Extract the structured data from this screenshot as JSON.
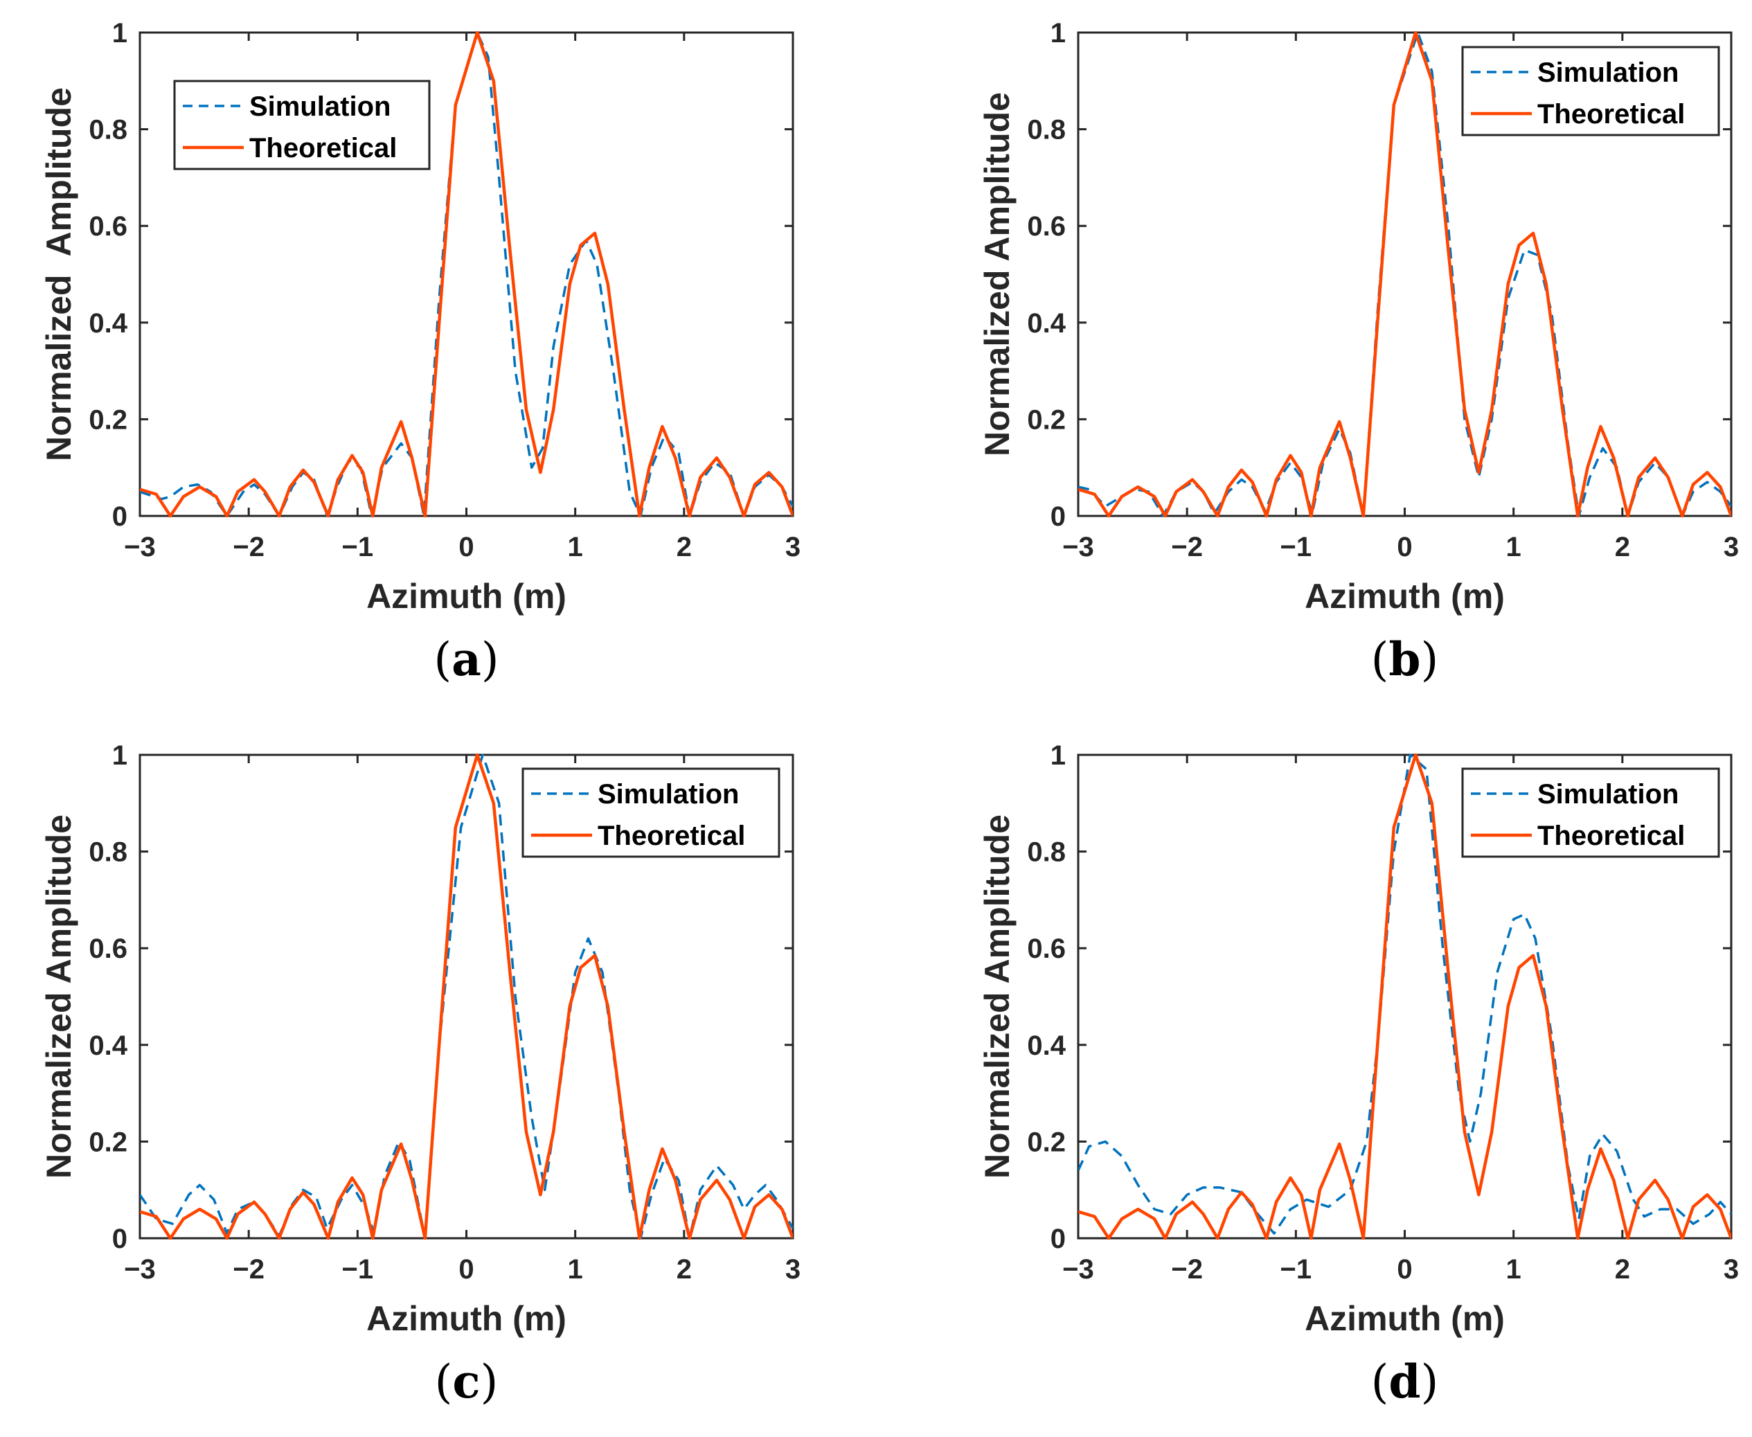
{
  "figure": {
    "colors": {
      "simulation": "#0072BD",
      "theoretical": "#FF4500",
      "axis": "#262626"
    }
  },
  "chart_data": [
    {
      "type": "line",
      "panel_label": "a",
      "xlabel": "Azimuth (m)",
      "ylabel": "Normalized  Amplitude",
      "xlim": [
        -3,
        3
      ],
      "ylim": [
        0,
        1
      ],
      "xticks": [
        "−3",
        "−2",
        "−1",
        "0",
        "1",
        "2",
        "3"
      ],
      "yticks": [
        "0",
        "0.2",
        "0.4",
        "0.6",
        "0.8",
        "1"
      ],
      "legend": {
        "position": "top-left",
        "entries": [
          "Simulation",
          "Theoretical"
        ]
      },
      "series": [
        {
          "name": "Simulation",
          "style": "dashed",
          "x": [
            -3,
            -2.8,
            -2.72,
            -2.6,
            -2.47,
            -2.35,
            -2.2,
            -2.05,
            -1.95,
            -1.85,
            -1.72,
            -1.6,
            -1.5,
            -1.4,
            -1.28,
            -1.18,
            -1.08,
            -0.97,
            -0.87,
            -0.77,
            -0.6,
            -0.5,
            -0.39,
            -0.25,
            -0.1,
            0.1,
            0.2,
            0.3,
            0.45,
            0.6,
            0.7,
            0.8,
            0.95,
            1.1,
            1.2,
            1.35,
            1.5,
            1.6,
            1.7,
            1.82,
            1.95,
            2.05,
            2.15,
            2.28,
            2.42,
            2.55,
            2.65,
            2.78,
            2.9,
            3
          ],
          "y": [
            0.05,
            0.035,
            0.04,
            0.06,
            0.065,
            0.05,
            0,
            0.05,
            0.065,
            0.045,
            0,
            0.06,
            0.09,
            0.075,
            0,
            0.065,
            0.115,
            0.1,
            0,
            0.1,
            0.15,
            0.12,
            0,
            0.45,
            0.85,
            1,
            0.95,
            0.7,
            0.3,
            0.1,
            0.14,
            0.35,
            0.52,
            0.57,
            0.52,
            0.3,
            0.05,
            0,
            0.1,
            0.165,
            0.13,
            0,
            0.07,
            0.11,
            0.09,
            0,
            0.06,
            0.085,
            0.06,
            0.02
          ]
        },
        {
          "name": "Theoretical",
          "style": "solid",
          "x": [
            -3,
            -2.85,
            -2.72,
            -2.6,
            -2.45,
            -2.3,
            -2.2,
            -2.1,
            -1.95,
            -1.85,
            -1.72,
            -1.62,
            -1.5,
            -1.4,
            -1.27,
            -1.18,
            -1.05,
            -0.95,
            -0.86,
            -0.78,
            -0.6,
            -0.5,
            -0.38,
            -0.25,
            -0.1,
            0.1,
            0.25,
            0.4,
            0.55,
            0.68,
            0.8,
            0.95,
            1.05,
            1.18,
            1.3,
            1.45,
            1.59,
            1.68,
            1.8,
            1.92,
            2.05,
            2.15,
            2.3,
            2.42,
            2.55,
            2.65,
            2.78,
            2.9,
            3
          ],
          "y": [
            0.055,
            0.045,
            0,
            0.04,
            0.06,
            0.04,
            0,
            0.05,
            0.075,
            0.05,
            0,
            0.06,
            0.095,
            0.07,
            0,
            0.075,
            0.125,
            0.09,
            0,
            0.1,
            0.195,
            0.12,
            0,
            0.4,
            0.85,
            1,
            0.9,
            0.55,
            0.22,
            0.09,
            0.22,
            0.48,
            0.56,
            0.585,
            0.48,
            0.22,
            0,
            0.1,
            0.185,
            0.12,
            0,
            0.08,
            0.12,
            0.08,
            0,
            0.065,
            0.09,
            0.06,
            0
          ]
        }
      ]
    },
    {
      "type": "line",
      "panel_label": "b",
      "xlabel": "Azimuth (m)",
      "ylabel": "Normalized Amplitude",
      "xlim": [
        -3,
        3
      ],
      "ylim": [
        0,
        1
      ],
      "xticks": [
        "−3",
        "−2",
        "−1",
        "0",
        "1",
        "2",
        "3"
      ],
      "yticks": [
        "0",
        "0.2",
        "0.4",
        "0.6",
        "0.8",
        "1"
      ],
      "legend": {
        "position": "top-right",
        "entries": [
          "Simulation",
          "Theoretical"
        ]
      },
      "series": [
        {
          "name": "Simulation",
          "style": "dashed",
          "x": [
            -3,
            -2.9,
            -2.75,
            -2.6,
            -2.48,
            -2.35,
            -2.22,
            -2.1,
            -1.95,
            -1.85,
            -1.75,
            -1.62,
            -1.5,
            -1.4,
            -1.28,
            -1.18,
            -1.05,
            -0.95,
            -0.85,
            -0.75,
            -0.6,
            -0.5,
            -0.38,
            -0.25,
            -0.1,
            0.12,
            0.25,
            0.4,
            0.55,
            0.68,
            0.8,
            0.95,
            1.1,
            1.22,
            1.35,
            1.5,
            1.6,
            1.7,
            1.82,
            1.95,
            2.05,
            2.15,
            2.3,
            2.42,
            2.55,
            2.65,
            2.78,
            2.9,
            3
          ],
          "y": [
            0.06,
            0.055,
            0.02,
            0.04,
            0.055,
            0.05,
            0,
            0.05,
            0.07,
            0.05,
            0.005,
            0.05,
            0.075,
            0.06,
            0.01,
            0.07,
            0.11,
            0.08,
            0.005,
            0.11,
            0.18,
            0.13,
            0,
            0.42,
            0.85,
            1,
            0.92,
            0.6,
            0.2,
            0.08,
            0.2,
            0.45,
            0.55,
            0.54,
            0.42,
            0.15,
            0,
            0.08,
            0.14,
            0.1,
            0,
            0.07,
            0.11,
            0.08,
            0,
            0.05,
            0.07,
            0.05,
            0.02
          ]
        },
        {
          "name": "Theoretical",
          "style": "solid",
          "x": [
            -3,
            -2.85,
            -2.72,
            -2.6,
            -2.45,
            -2.3,
            -2.2,
            -2.1,
            -1.95,
            -1.85,
            -1.72,
            -1.62,
            -1.5,
            -1.4,
            -1.27,
            -1.18,
            -1.05,
            -0.95,
            -0.86,
            -0.78,
            -0.6,
            -0.5,
            -0.38,
            -0.25,
            -0.1,
            0.1,
            0.25,
            0.4,
            0.55,
            0.68,
            0.8,
            0.95,
            1.05,
            1.18,
            1.3,
            1.45,
            1.59,
            1.68,
            1.8,
            1.92,
            2.05,
            2.15,
            2.3,
            2.42,
            2.55,
            2.65,
            2.78,
            2.9,
            3
          ],
          "y": [
            0.055,
            0.045,
            0,
            0.04,
            0.06,
            0.04,
            0,
            0.05,
            0.075,
            0.05,
            0,
            0.06,
            0.095,
            0.07,
            0,
            0.075,
            0.125,
            0.09,
            0,
            0.1,
            0.195,
            0.12,
            0,
            0.4,
            0.85,
            1,
            0.9,
            0.55,
            0.22,
            0.09,
            0.22,
            0.48,
            0.56,
            0.585,
            0.48,
            0.22,
            0,
            0.1,
            0.185,
            0.12,
            0,
            0.08,
            0.12,
            0.08,
            0,
            0.065,
            0.09,
            0.06,
            0
          ]
        }
      ]
    },
    {
      "type": "line",
      "panel_label": "c",
      "xlabel": "Azimuth (m)",
      "ylabel": "Normalized Amplitude",
      "xlim": [
        -3,
        3
      ],
      "ylim": [
        0,
        1
      ],
      "xticks": [
        "−3",
        "−2",
        "−1",
        "0",
        "1",
        "2",
        "3"
      ],
      "yticks": [
        "0",
        "0.2",
        "0.4",
        "0.6",
        "0.8",
        "1"
      ],
      "legend": {
        "position": "top-right",
        "entries": [
          "Simulation",
          "Theoretical"
        ]
      },
      "series": [
        {
          "name": "Simulation",
          "style": "dashed",
          "x": [
            -3,
            -2.85,
            -2.7,
            -2.55,
            -2.45,
            -2.32,
            -2.2,
            -2.1,
            -1.95,
            -1.85,
            -1.72,
            -1.6,
            -1.5,
            -1.38,
            -1.28,
            -1.15,
            -1.05,
            -0.92,
            -0.85,
            -0.75,
            -0.62,
            -0.52,
            -0.38,
            -0.25,
            -0.05,
            0.15,
            0.3,
            0.45,
            0.6,
            0.72,
            0.85,
            1.0,
            1.12,
            1.25,
            1.4,
            1.5,
            1.6,
            1.7,
            1.82,
            1.95,
            2.05,
            2.15,
            2.3,
            2.45,
            2.55,
            2.65,
            2.75,
            2.85,
            3
          ],
          "y": [
            0.09,
            0.04,
            0.03,
            0.09,
            0.11,
            0.08,
            0.01,
            0.06,
            0.075,
            0.05,
            0.005,
            0.07,
            0.1,
            0.085,
            0.02,
            0.08,
            0.11,
            0.06,
            0.01,
            0.13,
            0.2,
            0.16,
            0,
            0.4,
            0.85,
            1,
            0.9,
            0.5,
            0.25,
            0.1,
            0.3,
            0.55,
            0.62,
            0.55,
            0.3,
            0.1,
            0,
            0.09,
            0.165,
            0.12,
            0,
            0.1,
            0.15,
            0.11,
            0.06,
            0.09,
            0.11,
            0.08,
            0.02
          ]
        },
        {
          "name": "Theoretical",
          "style": "solid",
          "x": [
            -3,
            -2.85,
            -2.72,
            -2.6,
            -2.45,
            -2.3,
            -2.2,
            -2.1,
            -1.95,
            -1.85,
            -1.72,
            -1.62,
            -1.5,
            -1.4,
            -1.27,
            -1.18,
            -1.05,
            -0.95,
            -0.86,
            -0.78,
            -0.6,
            -0.5,
            -0.38,
            -0.25,
            -0.1,
            0.1,
            0.25,
            0.4,
            0.55,
            0.68,
            0.8,
            0.95,
            1.05,
            1.18,
            1.3,
            1.45,
            1.59,
            1.68,
            1.8,
            1.92,
            2.05,
            2.15,
            2.3,
            2.42,
            2.55,
            2.65,
            2.78,
            2.9,
            3
          ],
          "y": [
            0.055,
            0.045,
            0,
            0.04,
            0.06,
            0.04,
            0,
            0.05,
            0.075,
            0.05,
            0,
            0.06,
            0.095,
            0.07,
            0,
            0.075,
            0.125,
            0.09,
            0,
            0.1,
            0.195,
            0.12,
            0,
            0.4,
            0.85,
            1,
            0.9,
            0.55,
            0.22,
            0.09,
            0.22,
            0.48,
            0.56,
            0.585,
            0.48,
            0.22,
            0,
            0.1,
            0.185,
            0.12,
            0,
            0.08,
            0.12,
            0.08,
            0,
            0.065,
            0.09,
            0.06,
            0
          ]
        }
      ]
    },
    {
      "type": "line",
      "panel_label": "d",
      "xlabel": "Azimuth (m)",
      "ylabel": "Normalized Amplitude",
      "xlim": [
        -3,
        3
      ],
      "ylim": [
        0,
        1
      ],
      "xticks": [
        "−3",
        "−2",
        "−1",
        "0",
        "1",
        "2",
        "3"
      ],
      "yticks": [
        "0",
        "0.2",
        "0.4",
        "0.6",
        "0.8",
        "1"
      ],
      "legend": {
        "position": "top-right",
        "entries": [
          "Simulation",
          "Theoretical"
        ]
      },
      "series": [
        {
          "name": "Simulation",
          "style": "dashed",
          "x": [
            -3,
            -2.9,
            -2.75,
            -2.6,
            -2.45,
            -2.3,
            -2.15,
            -2.0,
            -1.85,
            -1.7,
            -1.5,
            -1.35,
            -1.2,
            -1.05,
            -0.9,
            -0.7,
            -0.5,
            -0.35,
            -0.25,
            -0.1,
            0.05,
            0.2,
            0.35,
            0.5,
            0.6,
            0.7,
            0.85,
            1.0,
            1.1,
            1.2,
            1.35,
            1.5,
            1.6,
            1.7,
            1.82,
            1.95,
            2.1,
            2.2,
            2.35,
            2.5,
            2.65,
            2.8,
            2.9,
            3
          ],
          "y": [
            0.14,
            0.19,
            0.2,
            0.17,
            0.11,
            0.06,
            0.05,
            0.09,
            0.105,
            0.105,
            0.095,
            0.05,
            0.01,
            0.06,
            0.08,
            0.065,
            0.1,
            0.2,
            0.4,
            0.8,
            1,
            0.97,
            0.6,
            0.3,
            0.2,
            0.3,
            0.55,
            0.66,
            0.67,
            0.62,
            0.42,
            0.15,
            0.04,
            0.17,
            0.215,
            0.18,
            0.08,
            0.045,
            0.06,
            0.06,
            0.03,
            0.05,
            0.075,
            0.05
          ]
        },
        {
          "name": "Theoretical",
          "style": "solid",
          "x": [
            -3,
            -2.85,
            -2.72,
            -2.6,
            -2.45,
            -2.3,
            -2.2,
            -2.1,
            -1.95,
            -1.85,
            -1.72,
            -1.62,
            -1.5,
            -1.4,
            -1.27,
            -1.18,
            -1.05,
            -0.95,
            -0.86,
            -0.78,
            -0.6,
            -0.5,
            -0.38,
            -0.25,
            -0.1,
            0.1,
            0.25,
            0.4,
            0.55,
            0.68,
            0.8,
            0.95,
            1.05,
            1.18,
            1.3,
            1.45,
            1.59,
            1.68,
            1.8,
            1.92,
            2.05,
            2.15,
            2.3,
            2.42,
            2.55,
            2.65,
            2.78,
            2.9,
            3
          ],
          "y": [
            0.055,
            0.045,
            0,
            0.04,
            0.06,
            0.04,
            0,
            0.05,
            0.075,
            0.05,
            0,
            0.06,
            0.095,
            0.07,
            0,
            0.075,
            0.125,
            0.09,
            0,
            0.1,
            0.195,
            0.12,
            0,
            0.4,
            0.85,
            1,
            0.9,
            0.55,
            0.22,
            0.09,
            0.22,
            0.48,
            0.56,
            0.585,
            0.48,
            0.22,
            0,
            0.1,
            0.185,
            0.12,
            0,
            0.08,
            0.12,
            0.08,
            0,
            0.065,
            0.09,
            0.06,
            0
          ]
        }
      ]
    }
  ]
}
